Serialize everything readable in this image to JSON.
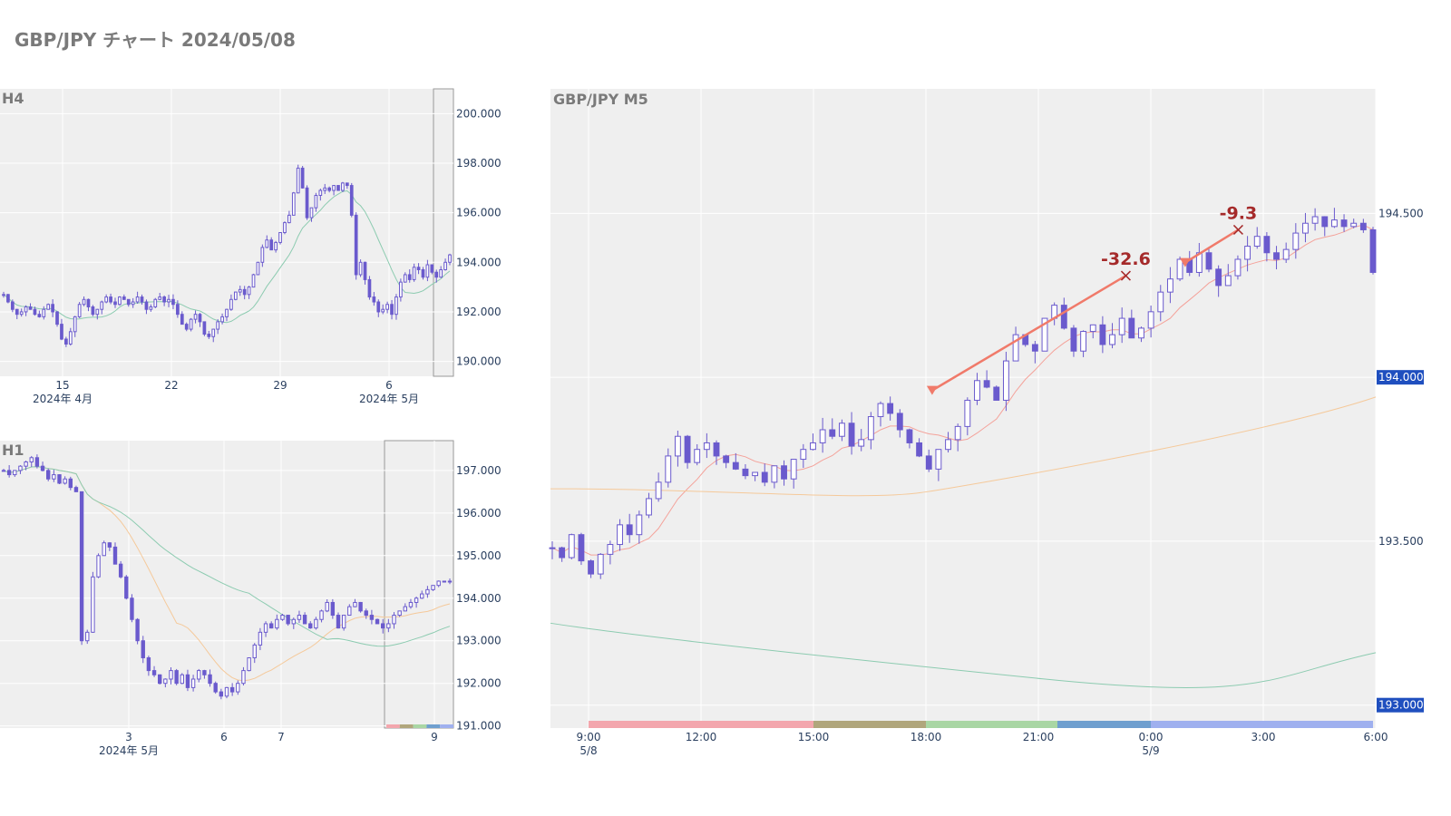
{
  "page": {
    "title": "GBP/JPY チャート 2024/05/08"
  },
  "colors": {
    "candle": "#6a5acd",
    "ma_fast": "#f4a29a",
    "ma_mid": "#f5c99a",
    "ma_slow": "#8ccbb0",
    "trade_line": "#f07a6a",
    "annotation": "#a52a2a",
    "badge": "#1f4fbf",
    "plot_bg": "#efefef",
    "session_bands": [
      "#f3a6ad",
      "#b0a67c",
      "#a9d6a4",
      "#6f9fcf",
      "#9fb0ef"
    ]
  },
  "chart_data": [
    {
      "id": "h4",
      "type": "candlestick",
      "title": "H4",
      "y_ticks": [
        "190.000",
        "192.000",
        "194.000",
        "196.000",
        "198.000",
        "200.000"
      ],
      "y_tick_values": [
        190,
        192,
        194,
        196,
        198,
        200
      ],
      "ylim": [
        189.4,
        201.0
      ],
      "x_ticks": [
        "15",
        "22",
        "29",
        "6"
      ],
      "x_sublabels": [
        "2024年 4月",
        "2024年 5月"
      ],
      "highlight_window": "last",
      "grid": true,
      "closes": [
        192.7,
        192.4,
        192.1,
        191.9,
        192.0,
        192.2,
        192.1,
        191.9,
        191.8,
        192.1,
        192.3,
        192.0,
        191.5,
        190.9,
        190.7,
        191.2,
        191.8,
        192.3,
        192.5,
        192.2,
        191.9,
        192.1,
        192.4,
        192.6,
        192.4,
        192.3,
        192.6,
        192.5,
        192.3,
        192.4,
        192.6,
        192.4,
        192.1,
        192.2,
        192.5,
        192.6,
        192.4,
        192.5,
        192.3,
        191.9,
        191.5,
        191.3,
        191.7,
        191.9,
        191.6,
        191.1,
        191.0,
        191.3,
        191.6,
        191.8,
        192.1,
        192.5,
        192.8,
        192.9,
        192.7,
        193.0,
        193.5,
        194.0,
        194.6,
        194.9,
        194.5,
        194.8,
        195.2,
        195.6,
        195.9,
        196.8,
        197.8,
        197.0,
        195.8,
        196.2,
        196.7,
        196.9,
        197.0,
        196.9,
        197.1,
        196.9,
        197.2,
        197.1,
        195.9,
        193.5,
        194.0,
        193.3,
        192.6,
        192.4,
        192.0,
        192.1,
        192.3,
        191.9,
        192.6,
        193.2,
        193.5,
        193.3,
        193.8,
        193.7,
        193.4,
        193.9,
        193.6,
        193.4,
        193.7,
        194.0,
        194.3
      ]
    },
    {
      "id": "h1",
      "type": "candlestick",
      "title": "H1",
      "y_ticks": [
        "191.000",
        "192.000",
        "193.000",
        "194.000",
        "195.000",
        "196.000",
        "197.000"
      ],
      "y_tick_values": [
        191,
        192,
        193,
        194,
        195,
        196,
        197
      ],
      "ylim": [
        190.95,
        197.7
      ],
      "x_ticks": [
        "3",
        "6",
        "7",
        "9"
      ],
      "x_sublabels": [
        "2024年 5月"
      ],
      "highlight_window": "last",
      "grid": true,
      "closes": [
        197.0,
        196.9,
        197.0,
        197.1,
        197.2,
        197.3,
        197.1,
        197.0,
        196.8,
        196.9,
        196.7,
        196.8,
        196.6,
        196.5,
        193.0,
        193.2,
        194.5,
        195.0,
        195.3,
        195.2,
        194.8,
        194.5,
        194.0,
        193.5,
        193.0,
        192.6,
        192.3,
        192.2,
        192.0,
        192.1,
        192.3,
        192.0,
        192.2,
        191.9,
        192.1,
        192.3,
        192.2,
        192.0,
        191.8,
        191.7,
        191.9,
        191.8,
        192.0,
        192.3,
        192.6,
        192.9,
        193.2,
        193.4,
        193.3,
        193.5,
        193.6,
        193.4,
        193.5,
        193.6,
        193.4,
        193.3,
        193.5,
        193.7,
        193.9,
        193.6,
        193.3,
        193.6,
        193.8,
        193.9,
        193.7,
        193.6,
        193.5,
        193.4,
        193.3,
        193.4,
        193.6,
        193.7,
        193.8,
        193.9,
        194.0,
        194.1,
        194.2,
        194.3,
        194.4,
        194.4,
        194.4
      ],
      "session_bands": true
    },
    {
      "id": "m5",
      "type": "candlestick",
      "title": "GBP/JPY M5",
      "y_ticks": [
        "193.000",
        "193.500",
        "194.000",
        "194.500"
      ],
      "y_tick_values": [
        193.0,
        193.5,
        194.0,
        194.5
      ],
      "ylim": [
        192.93,
        194.88
      ],
      "badges": [
        "194.000",
        "193.000"
      ],
      "x_ticks": [
        "9:00",
        "12:00",
        "15:00",
        "18:00",
        "21:00",
        "0:00",
        "3:00",
        "6:00"
      ],
      "x_date_labels": [
        {
          "at": "9:00",
          "text": "5/8"
        },
        {
          "at": "0:00",
          "text": "5/9"
        }
      ],
      "grid": true,
      "closes": [
        193.48,
        193.45,
        193.52,
        193.44,
        193.4,
        193.46,
        193.49,
        193.55,
        193.52,
        193.58,
        193.63,
        193.68,
        193.76,
        193.82,
        193.74,
        193.78,
        193.8,
        193.76,
        193.74,
        193.72,
        193.7,
        193.71,
        193.68,
        193.73,
        193.69,
        193.75,
        193.78,
        193.8,
        193.84,
        193.82,
        193.86,
        193.79,
        193.81,
        193.88,
        193.92,
        193.89,
        193.84,
        193.8,
        193.76,
        193.72,
        193.78,
        193.81,
        193.85,
        193.93,
        193.99,
        193.97,
        193.93,
        194.05,
        194.13,
        194.1,
        194.08,
        194.18,
        194.22,
        194.15,
        194.08,
        194.14,
        194.16,
        194.1,
        194.13,
        194.18,
        194.12,
        194.15,
        194.2,
        194.26,
        194.3,
        194.36,
        194.32,
        194.38,
        194.33,
        194.28,
        194.31,
        194.36,
        194.4,
        194.43,
        194.38,
        194.36,
        194.39,
        194.44,
        194.47,
        194.49,
        194.46,
        194.48,
        194.46,
        194.47,
        194.45,
        194.32
      ],
      "trades": [
        {
          "label": "-32.6",
          "from_time": "18:10",
          "from_price": 193.96,
          "to_time": "23:20",
          "to_price": 194.31
        },
        {
          "label": "-9.3",
          "from_time": "0:55",
          "from_price": 194.35,
          "to_time": "2:20",
          "to_price": 194.45
        }
      ],
      "session_bands": true
    }
  ]
}
